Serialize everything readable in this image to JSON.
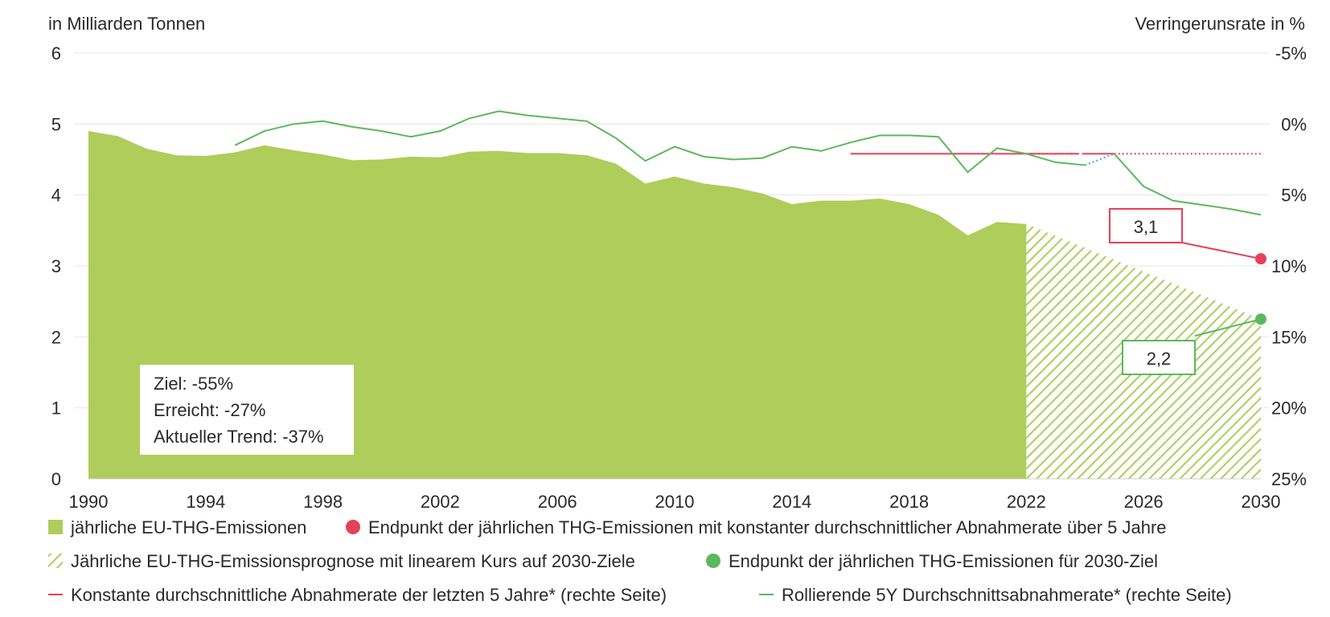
{
  "chart_data": {
    "type": "area",
    "y_left_label": "in Milliarden Tonnen",
    "y_right_label": "Verringerunsrate in %",
    "y_left_ticks": [
      "0",
      "1",
      "2",
      "3",
      "4",
      "5",
      "6"
    ],
    "y_right_ticks": [
      "-5%",
      "0%",
      "5%",
      "10%",
      "15%",
      "20%",
      "25%"
    ],
    "x_ticks": [
      "1990",
      "1994",
      "1998",
      "2002",
      "2006",
      "2010",
      "2014",
      "2018",
      "2022",
      "2026",
      "2030"
    ],
    "ylim_left": [
      0,
      6
    ],
    "ylim_right": [
      -5,
      25
    ],
    "xlim": [
      1990,
      2030
    ],
    "emissions": {
      "name": "jährliche EU-THG-Emissionen",
      "x": [
        1990,
        1991,
        1992,
        1993,
        1994,
        1995,
        1996,
        1997,
        1998,
        1999,
        2000,
        2001,
        2002,
        2003,
        2004,
        2005,
        2006,
        2007,
        2008,
        2009,
        2010,
        2011,
        2012,
        2013,
        2014,
        2015,
        2016,
        2017,
        2018,
        2019,
        2020,
        2021,
        2022
      ],
      "y": [
        4.9,
        4.83,
        4.65,
        4.56,
        4.55,
        4.6,
        4.7,
        4.63,
        4.57,
        4.49,
        4.5,
        4.54,
        4.53,
        4.61,
        4.62,
        4.59,
        4.59,
        4.56,
        4.44,
        4.16,
        4.26,
        4.16,
        4.11,
        4.02,
        3.87,
        3.92,
        3.92,
        3.95,
        3.87,
        3.72,
        3.43,
        3.62,
        3.59
      ]
    },
    "projection": {
      "name": "Jährliche EU-THG-Emissionsprognose mit linearem Kurs auf 2030-Ziele",
      "x": [
        2022,
        2030
      ],
      "y": [
        3.59,
        2.25
      ]
    },
    "rolling_rate": {
      "name": "Rollierende 5Y Durchschnittsabnahmerate* (rechte Seite)",
      "x": [
        1995,
        1996,
        1997,
        1998,
        1999,
        2000,
        2001,
        2002,
        2003,
        2004,
        2005,
        2006,
        2007,
        2008,
        2009,
        2010,
        2011,
        2012,
        2013,
        2014,
        2015,
        2016,
        2017,
        2018,
        2019,
        2020,
        2021,
        2022,
        2023,
        2024
      ],
      "y": [
        1.5,
        0.5,
        0.0,
        -0.2,
        0.2,
        0.5,
        0.9,
        0.5,
        -0.4,
        -0.9,
        -0.6,
        -0.4,
        -0.2,
        1.0,
        2.6,
        1.6,
        2.3,
        2.5,
        2.4,
        1.6,
        1.9,
        1.3,
        0.8,
        0.8,
        0.9,
        3.4,
        1.7,
        2.1,
        2.7,
        2.9
      ],
      "dotted_x": [
        2024,
        2025
      ],
      "dotted_y": [
        2.9,
        2.1
      ],
      "projection_x": [
        2025,
        2026,
        2027,
        2028,
        2029,
        2030
      ],
      "projection_y": [
        2.1,
        4.4,
        5.4,
        5.7,
        6.0,
        6.4
      ]
    },
    "constant_rate": {
      "name": "Konstante durchschnittliche Abnahmerate der letzten 5 Jahre* (rechte Seite)",
      "value": 2.1,
      "solid_ranges": [
        [
          2016,
          2023.8
        ],
        [
          2023.9,
          2025
        ]
      ],
      "dotted_ranges": [
        [
          2022,
          2023.8
        ],
        [
          2025,
          2030
        ]
      ]
    },
    "endpoint_constant": {
      "name": "Endpunkt der jährlichen THG-Emissionen mit konstanter durchschnittlicher Abnahmerate über 5 Jahre",
      "x": 2030,
      "y": 3.1,
      "label": "3,1",
      "color": "#e6405a"
    },
    "endpoint_target": {
      "name": "Endpunkt der jährlichen THG-Emissionen für 2030-Ziel",
      "x": 2030,
      "y": 2.25,
      "label": "2,2",
      "color": "#5cb85c"
    },
    "info_box": {
      "lines": [
        "Ziel: -55%",
        "Erreicht: -27%",
        "Aktueller Trend: -37%"
      ]
    },
    "colors": {
      "area": "#aecd5b",
      "rolling": "#5cb85c",
      "constant": "#e6405a",
      "dotted_blue": "#4aa3d8",
      "grid": "#e6e6e6"
    },
    "legend": [
      {
        "label": "jährliche EU-THG-Emissionen",
        "marker": "square"
      },
      {
        "label": "Endpunkt der jährlichen THG-Emissionen mit konstanter durchschnittlicher Abnahmerate über 5 Jahre",
        "marker": "dot-red"
      },
      {
        "label": "Jährliche EU-THG-Emissionsprognose mit linearem Kurs auf 2030-Ziele",
        "marker": "hatch"
      },
      {
        "label": "Endpunkt der jährlichen THG-Emissionen für 2030-Ziel",
        "marker": "dot-green"
      },
      {
        "label": "Konstante durchschnittliche Abnahmerate der letzten 5 Jahre* (rechte Seite)",
        "marker": "line-red"
      },
      {
        "label": "Rollierende 5Y Durchschnittsabnahmerate* (rechte Seite)",
        "marker": "line-green"
      }
    ]
  }
}
